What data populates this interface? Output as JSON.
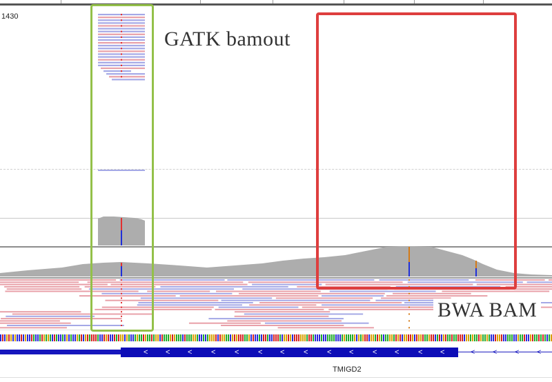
{
  "coverage_scale": "1430",
  "labels": {
    "gatk": "GATK bamout",
    "bwa": "BWA BAM"
  },
  "gene": {
    "name": "TMIGD2",
    "strand_glyph": "<"
  },
  "colors": {
    "coverage_gray": "#adadad",
    "read_forward": "#e8a0a8",
    "read_reverse": "#a4a8e6",
    "mismatch_red": "#e23030",
    "mismatch_blue": "#1f2fd8",
    "mismatch_orange": "#d47a17",
    "highlight_green": "#93c049",
    "highlight_red": "#de3e3e",
    "gene_blue": "#0d0db7"
  }
}
